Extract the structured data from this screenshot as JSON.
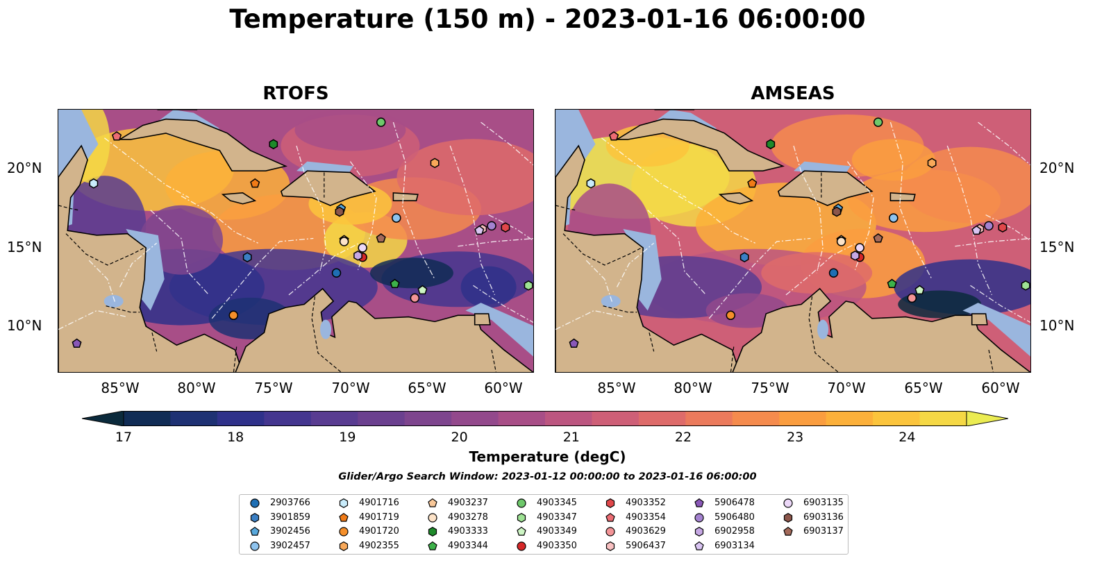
{
  "title": "Temperature (150 m) - 2023-01-16 06:00:00",
  "panels": [
    {
      "title": "RTOFS"
    },
    {
      "title": "AMSEAS"
    }
  ],
  "lat_labels": [
    "20°N",
    "15°N",
    "10°N"
  ],
  "lon_labels": [
    "85°W",
    "80°W",
    "75°W",
    "70°W",
    "65°W",
    "60°W"
  ],
  "map_extent": {
    "lon_min": -89,
    "lon_max": -58,
    "lat_min": 7,
    "lat_max": 23.8
  },
  "colorbar": {
    "ticks": [
      "17",
      "18",
      "19",
      "20",
      "21",
      "22",
      "23",
      "24"
    ],
    "label": "Temperature (degC)",
    "colors": [
      "#0b2a3c",
      "#102c55",
      "#1e3173",
      "#2f318a",
      "#44368f",
      "#593c91",
      "#6b408f",
      "#7e458e",
      "#93498c",
      "#a84e87",
      "#bc5680",
      "#ce5f77",
      "#de6b6a",
      "#eb7a5c",
      "#f58b4d",
      "#fa9d3f",
      "#fcb03a",
      "#fbc43c",
      "#f5d845",
      "#ebec52"
    ]
  },
  "search_window": "Glider/Argo Search Window: 2023-01-12 00:00:00 to 2023-01-16 06:00:00",
  "legend": [
    {
      "id": "2903766",
      "marker": "circle",
      "color": "#1f6fb4",
      "lon": -70.9,
      "lat": 13.4
    },
    {
      "id": "3901859",
      "marker": "hexagon",
      "color": "#3b7fc4",
      "lon": -76.7,
      "lat": 14.4
    },
    {
      "id": "3902456",
      "marker": "pentagon",
      "color": "#58a8dc",
      "lon": -70.6,
      "lat": 17.5
    },
    {
      "id": "3902457",
      "marker": "circle",
      "color": "#8ec3ee",
      "lon": -67.0,
      "lat": 16.9
    },
    {
      "id": "4901716",
      "marker": "hexagon",
      "color": "#c9ecfb",
      "lon": -86.7,
      "lat": 19.1
    },
    {
      "id": "4901719",
      "marker": "pentagon",
      "color": "#f07b17",
      "lon": -76.2,
      "lat": 19.1
    },
    {
      "id": "4901720",
      "marker": "circle",
      "color": "#f58f2a",
      "lon": -77.6,
      "lat": 10.7
    },
    {
      "id": "4902355",
      "marker": "hexagon",
      "color": "#f8a859",
      "lon": -64.5,
      "lat": 20.4
    },
    {
      "id": "4903237",
      "marker": "pentagon",
      "color": "#f9c899",
      "lon": -70.4,
      "lat": 15.5
    },
    {
      "id": "4903278",
      "marker": "circle",
      "color": "#fde3c8",
      "lon": -70.4,
      "lat": 15.4
    },
    {
      "id": "4903333",
      "marker": "hexagon",
      "color": "#1e8a2a",
      "lon": -75.0,
      "lat": 21.6
    },
    {
      "id": "4903344",
      "marker": "pentagon",
      "color": "#3db24a",
      "lon": -67.1,
      "lat": 12.7
    },
    {
      "id": "4903345",
      "marker": "circle",
      "color": "#6ec86b",
      "lon": -68.0,
      "lat": 23.0
    },
    {
      "id": "4903347",
      "marker": "hexagon",
      "color": "#9ee294",
      "lon": -58.4,
      "lat": 12.6
    },
    {
      "id": "4903349",
      "marker": "pentagon",
      "color": "#cdf5c4",
      "lon": -65.3,
      "lat": 12.3
    },
    {
      "id": "4903350",
      "marker": "circle",
      "color": "#d62728",
      "lon": -69.2,
      "lat": 14.4
    },
    {
      "id": "4903352",
      "marker": "hexagon",
      "color": "#e0474a",
      "lon": -59.9,
      "lat": 16.3
    },
    {
      "id": "4903354",
      "marker": "pentagon",
      "color": "#ec6c73",
      "lon": -85.2,
      "lat": 22.1
    },
    {
      "id": "4903629",
      "marker": "circle",
      "color": "#f39497",
      "lon": -65.8,
      "lat": 11.8
    },
    {
      "id": "5906437",
      "marker": "hexagon",
      "color": "#f8c0c1",
      "lon": -61.4,
      "lat": 16.2
    },
    {
      "id": "5906478",
      "marker": "pentagon",
      "color": "#8a58b8",
      "lon": -87.8,
      "lat": 8.9
    },
    {
      "id": "5906480",
      "marker": "circle",
      "color": "#a482d0",
      "lon": -60.8,
      "lat": 16.4
    },
    {
      "id": "6902958",
      "marker": "hexagon",
      "color": "#c6a8e4",
      "lon": -69.5,
      "lat": 14.5
    },
    {
      "id": "6903134",
      "marker": "pentagon",
      "color": "#d9c4f2",
      "lon": -61.6,
      "lat": 16.1
    },
    {
      "id": "6903135",
      "marker": "circle",
      "color": "#ecd8f8",
      "lon": -69.2,
      "lat": 15.0
    },
    {
      "id": "6903136",
      "marker": "hexagon",
      "color": "#8c564b",
      "lon": -70.7,
      "lat": 17.3
    },
    {
      "id": "6903137",
      "marker": "pentagon",
      "color": "#a46a5a",
      "lon": -68.0,
      "lat": 15.6
    }
  ]
}
